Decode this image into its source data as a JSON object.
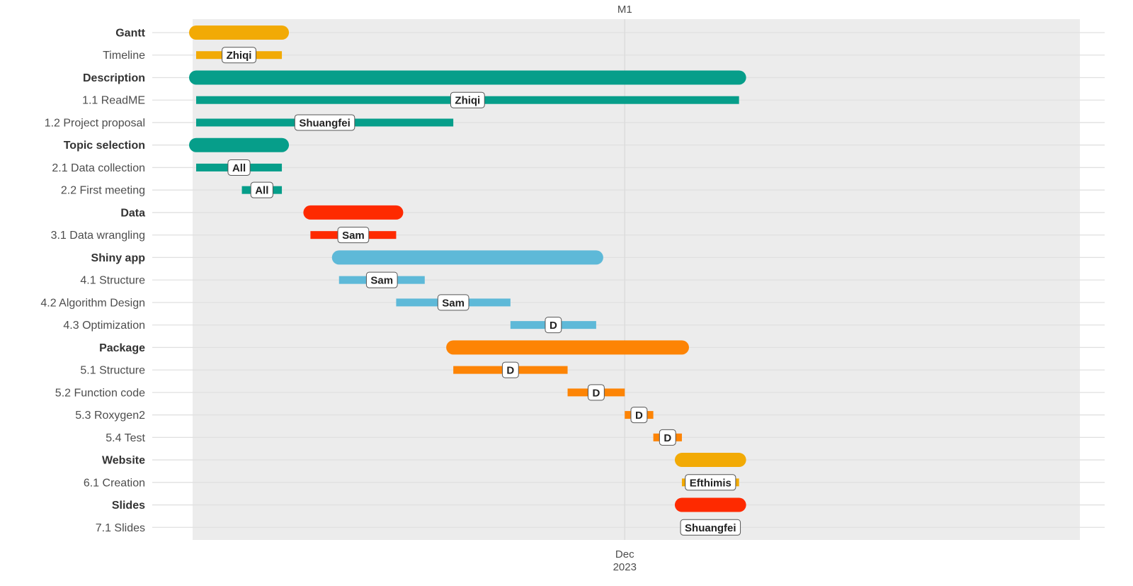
{
  "chart_data": {
    "type": "gantt",
    "x_unit": "week",
    "x_range": [
      0,
      31
    ],
    "milestone": {
      "label": "M1",
      "x": 15
    },
    "x_axis": {
      "ticks": [
        {
          "x": 15,
          "label": "Dec",
          "sublabel": "2023"
        }
      ]
    },
    "grid": true,
    "colors": {
      "gantt": "#F2AA05",
      "description": "#069E8A",
      "topic": "#069E8A",
      "data": "#FE2A00",
      "shiny": "#5EB9D8",
      "package": "#FD8405",
      "website": "#F2AA05",
      "slides": "#FE2A00"
    },
    "tasks": [
      {
        "label": "Gantt",
        "group": true,
        "start": 0,
        "end": 3,
        "color_key": "gantt"
      },
      {
        "label": "Timeline",
        "group": false,
        "start": 0,
        "end": 3,
        "owner": "Zhiqi",
        "color_key": "gantt"
      },
      {
        "label": "Description",
        "group": true,
        "start": 0,
        "end": 19,
        "color_key": "description"
      },
      {
        "label": "1.1 ReadME",
        "group": false,
        "start": 0,
        "end": 19,
        "owner": "Zhiqi",
        "color_key": "description"
      },
      {
        "label": "1.2 Project proposal",
        "group": false,
        "start": 0,
        "end": 9,
        "owner": "Shuangfei",
        "color_key": "description"
      },
      {
        "label": "Topic selection",
        "group": true,
        "start": 0,
        "end": 3,
        "color_key": "topic"
      },
      {
        "label": "2.1 Data collection",
        "group": false,
        "start": 0,
        "end": 3,
        "owner": "All",
        "color_key": "topic"
      },
      {
        "label": "2.2 First meeting",
        "group": false,
        "start": 1.6,
        "end": 3,
        "owner": "All",
        "color_key": "topic"
      },
      {
        "label": "Data",
        "group": true,
        "start": 4,
        "end": 7,
        "color_key": "data"
      },
      {
        "label": "3.1 Data wrangling",
        "group": false,
        "start": 4,
        "end": 7,
        "owner": "Sam",
        "color_key": "data"
      },
      {
        "label": "Shiny app",
        "group": true,
        "start": 5,
        "end": 14,
        "color_key": "shiny"
      },
      {
        "label": "4.1 Structure",
        "group": false,
        "start": 5,
        "end": 8,
        "owner": "Sam",
        "color_key": "shiny"
      },
      {
        "label": "4.2 Algorithm Design",
        "group": false,
        "start": 7,
        "end": 11,
        "owner": "Sam",
        "color_key": "shiny"
      },
      {
        "label": "4.3 Optimization",
        "group": false,
        "start": 11,
        "end": 14,
        "owner": "D",
        "color_key": "shiny"
      },
      {
        "label": "Package",
        "group": true,
        "start": 9,
        "end": 17,
        "color_key": "package"
      },
      {
        "label": "5.1 Structure",
        "group": false,
        "start": 9,
        "end": 13,
        "owner": "D",
        "color_key": "package"
      },
      {
        "label": "5.2 Function code",
        "group": false,
        "start": 13,
        "end": 15,
        "owner": "D",
        "color_key": "package"
      },
      {
        "label": "5.3 Roxygen2",
        "group": false,
        "start": 15,
        "end": 16,
        "owner": "D",
        "color_key": "package"
      },
      {
        "label": "5.4 Test",
        "group": false,
        "start": 16,
        "end": 17,
        "owner": "D",
        "color_key": "package"
      },
      {
        "label": "Website",
        "group": true,
        "start": 17,
        "end": 19,
        "color_key": "website"
      },
      {
        "label": "6.1 Creation",
        "group": false,
        "start": 17,
        "end": 19,
        "owner": "Efthimis",
        "color_key": "website"
      },
      {
        "label": "Slides",
        "group": true,
        "start": 17,
        "end": 19,
        "color_key": "slides"
      },
      {
        "label": "7.1 Slides",
        "group": false,
        "start": 17,
        "end": 19,
        "owner": "Shuangfei",
        "color_key": "slides"
      }
    ]
  }
}
